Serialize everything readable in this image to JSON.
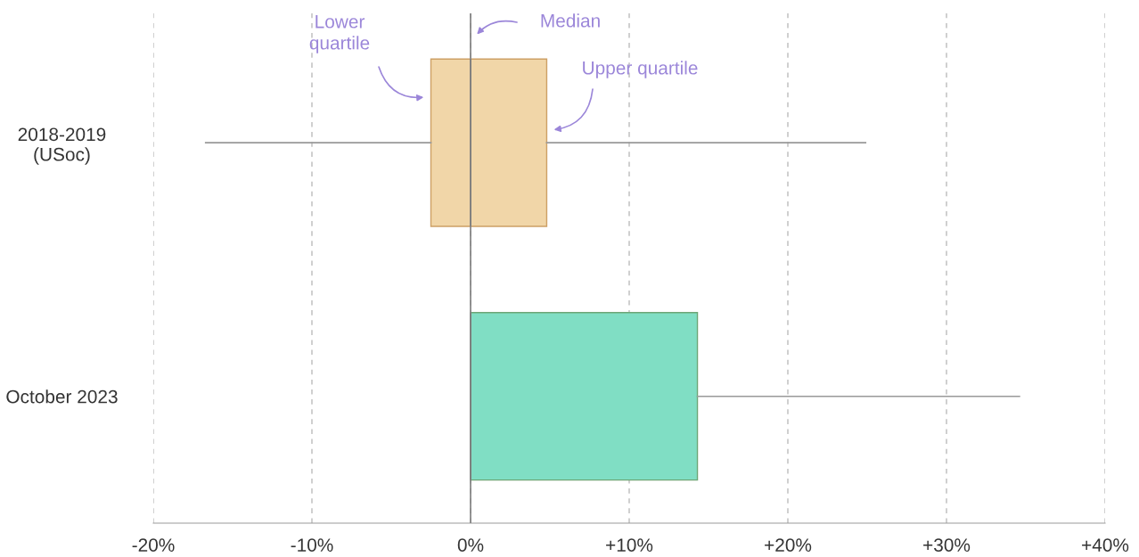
{
  "chart_data": {
    "type": "box",
    "orientation": "horizontal",
    "categories": [
      "2018-2019\n(USoc)",
      "October 2023"
    ],
    "boxes": [
      {
        "low": -16.7,
        "q1": -2.5,
        "median": 0,
        "q3": 4.8,
        "high": 24.9
      },
      {
        "low": 0,
        "q1": 0,
        "median": 0,
        "q3": 14.3,
        "high": 34.6
      }
    ],
    "colors": [
      "#f1d6a8",
      "#80dec4"
    ],
    "xlim": [
      -20,
      40
    ],
    "xticks": [
      {
        "value": -20,
        "label": "-20%"
      },
      {
        "value": -10,
        "label": "-10%"
      },
      {
        "value": 0,
        "label": "0%"
      },
      {
        "value": 10,
        "label": "+10%"
      },
      {
        "value": 20,
        "label": "+20%"
      },
      {
        "value": 30,
        "label": "+30%"
      },
      {
        "value": 40,
        "label": "+40%"
      }
    ],
    "grid": "x",
    "ref_lines": [
      {
        "axis": "x",
        "value": 0,
        "color": "#808080",
        "line_style": "solid"
      }
    ],
    "annotations": [
      "Lower\nquartile",
      "Median",
      "Upper quartile"
    ]
  }
}
